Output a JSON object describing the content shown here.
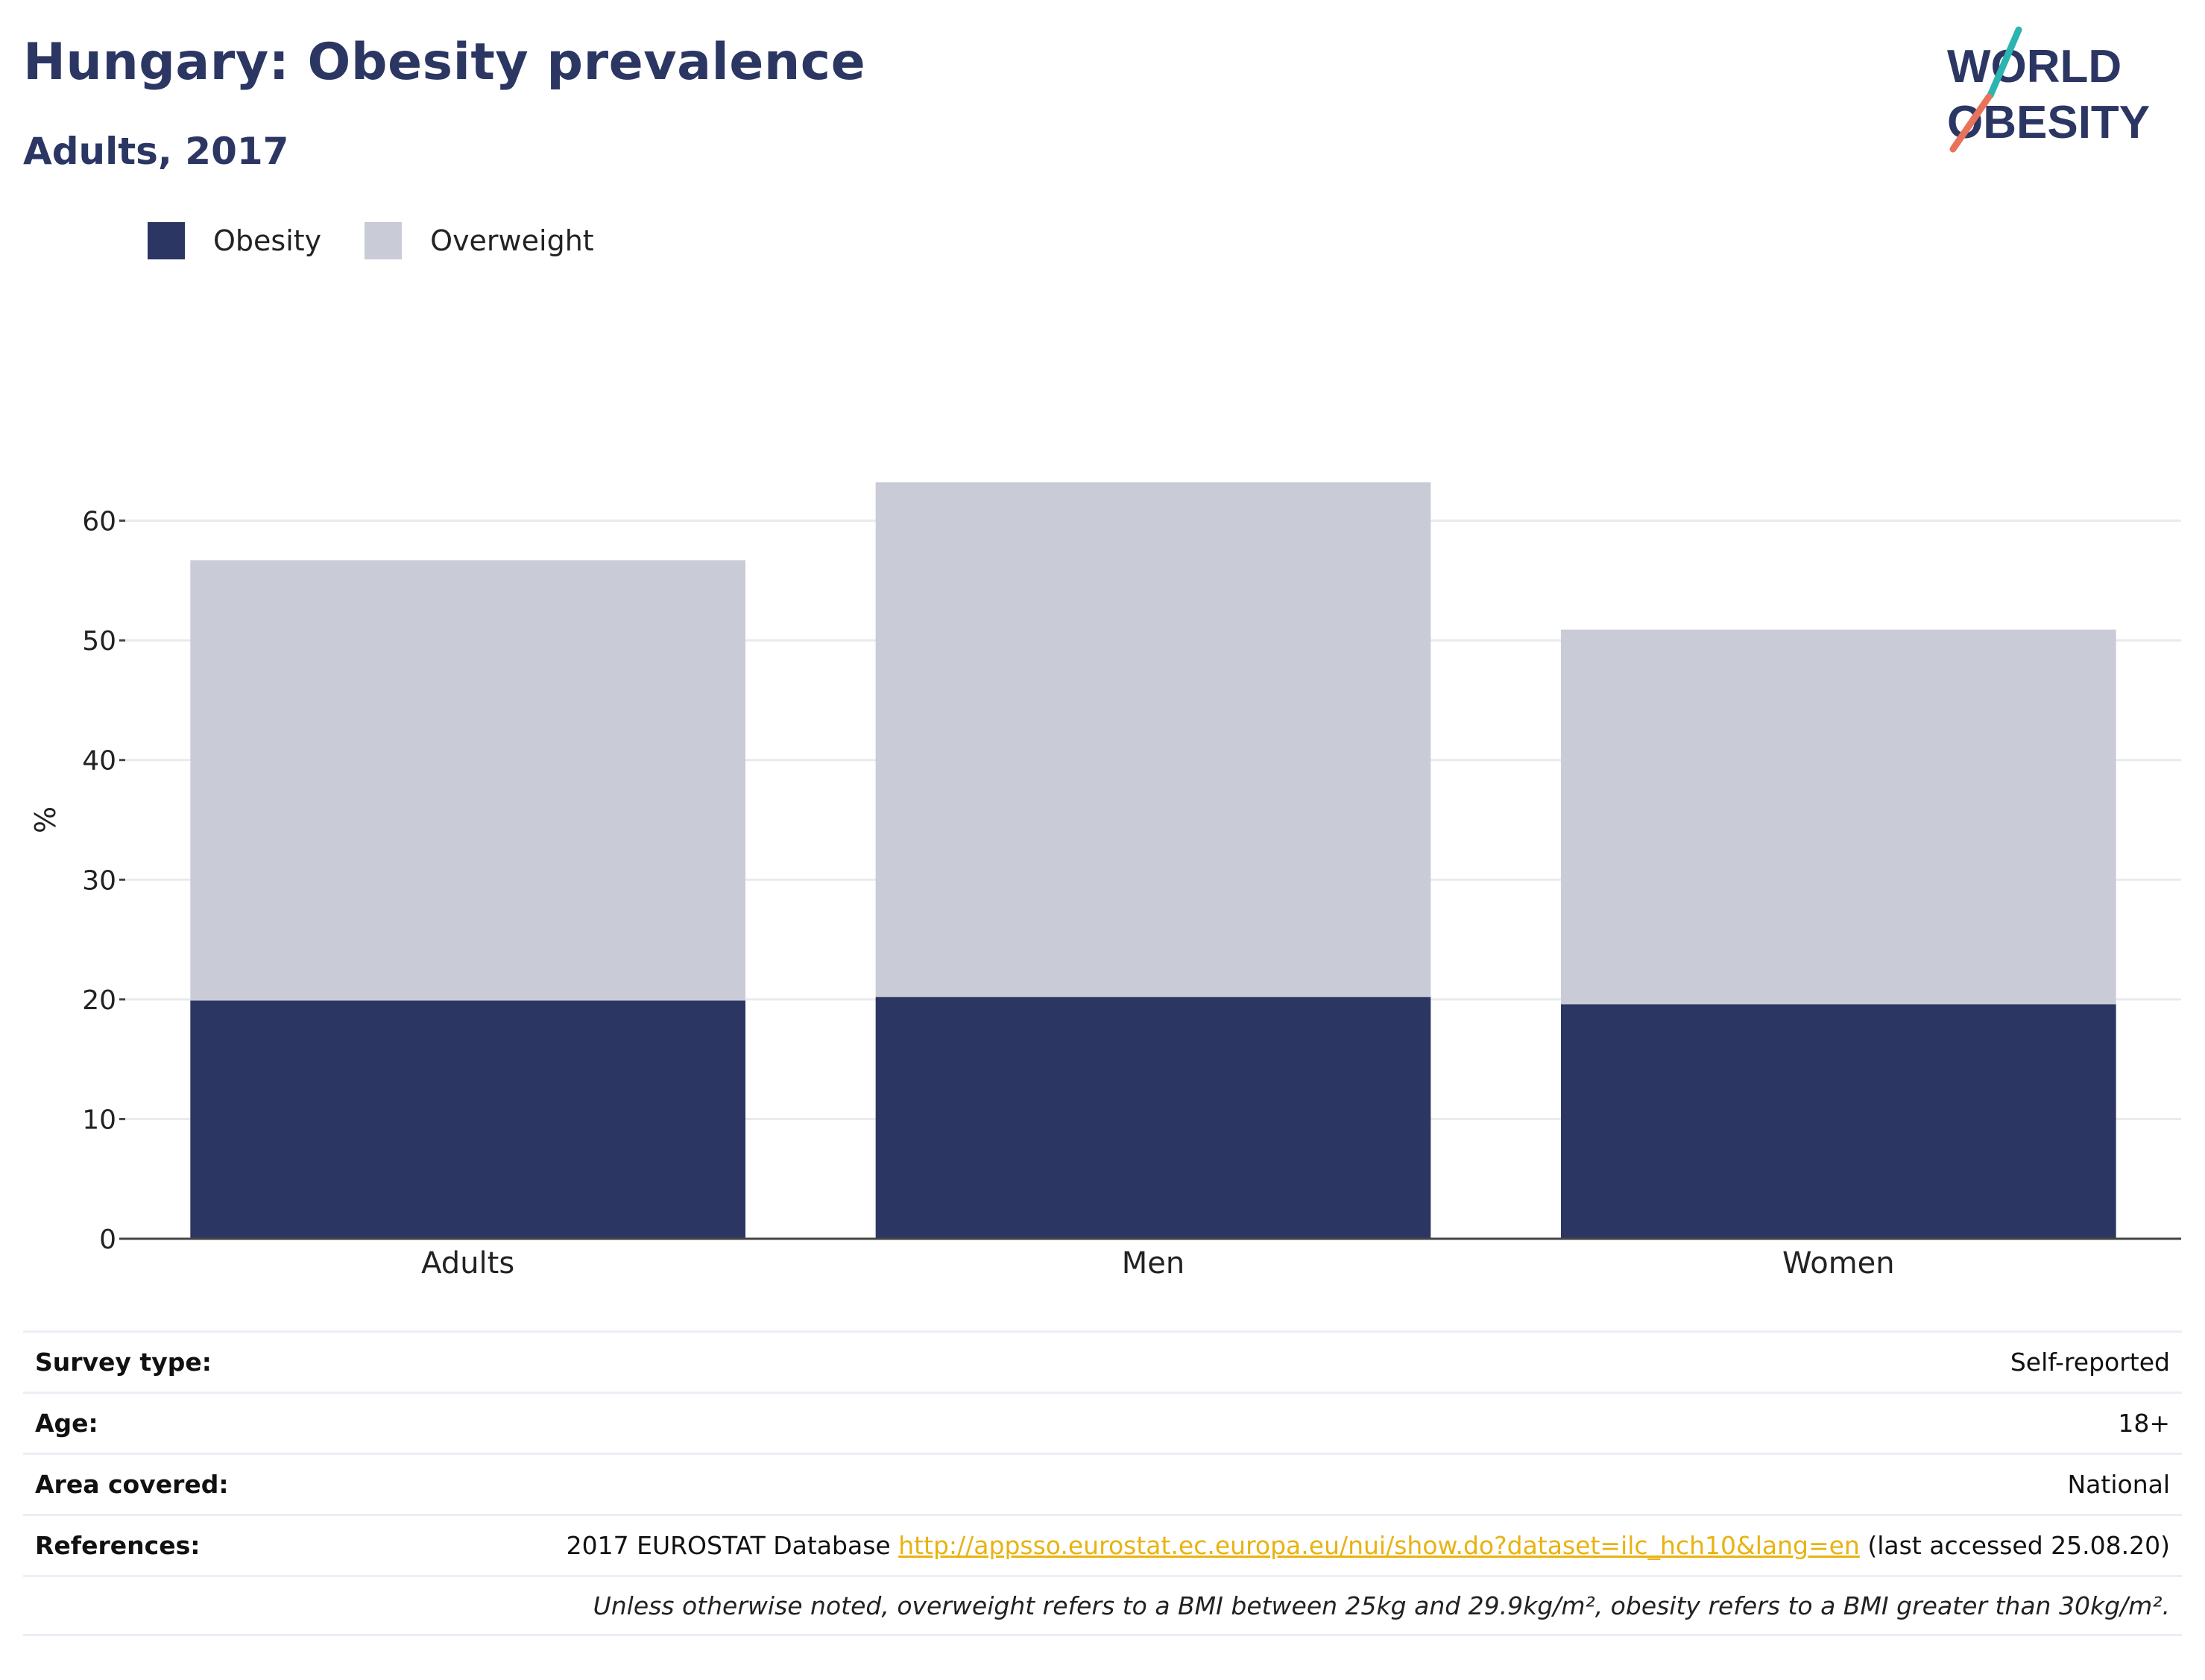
{
  "header": {
    "title": "Hungary: Obesity prevalence",
    "subtitle": "Adults, 2017"
  },
  "logo": {
    "line1": "WORLD",
    "line2": "OBESITY",
    "colors": {
      "navy": "#2b3663",
      "teal": "#2cb5b0",
      "coral": "#e8735a"
    }
  },
  "legend": [
    {
      "label": "Obesity",
      "color": "#2b3663"
    },
    {
      "label": "Overweight",
      "color": "#c9cbd7"
    }
  ],
  "chart_data": {
    "type": "bar",
    "stacked": true,
    "categories": [
      "Adults",
      "Men",
      "Women"
    ],
    "series": [
      {
        "name": "Obesity",
        "values": [
          19.9,
          20.2,
          19.6
        ],
        "color": "#2b3663"
      },
      {
        "name": "Overweight",
        "values": [
          36.8,
          43.0,
          31.3
        ],
        "color": "#c9cbd7"
      }
    ],
    "totals": [
      56.7,
      63.2,
      50.9
    ],
    "ylabel": "%",
    "xlabel": "",
    "yticks": [
      0,
      10,
      20,
      30,
      40,
      50,
      60
    ],
    "ylim": [
      0,
      70
    ],
    "grid": true,
    "legend_position": "top-left"
  },
  "info": {
    "survey_type": {
      "label": "Survey type:",
      "value": "Self-reported"
    },
    "age": {
      "label": "Age:",
      "value": "18+"
    },
    "area": {
      "label": "Area covered:",
      "value": "National"
    },
    "references": {
      "label": "References:",
      "prefix": "2017 EUROSTAT Database ",
      "link": "http://appsso.eurostat.ec.europa.eu/nui/show.do?dataset=ilc_hch10&lang=en",
      "suffix": " (last accessed 25.08.20)"
    },
    "note": "Unless otherwise noted, overweight refers to a BMI between 25kg and 29.9kg/m², obesity refers to a BMI greater than 30kg/m²."
  }
}
